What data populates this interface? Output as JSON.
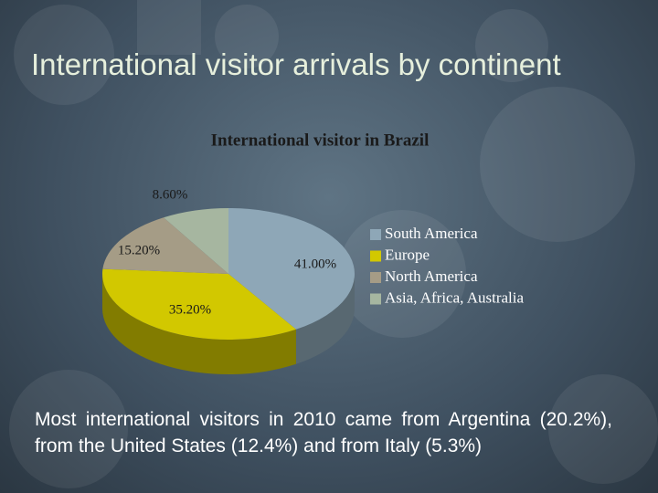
{
  "slide": {
    "title": "International visitor arrivals by continent",
    "body": "Most international visitors in 2010 came from Argentina (20.2%), from the United States (12.4%) and from Italy (5.3%)"
  },
  "chart_data": {
    "type": "pie",
    "title": "International visitor in Brazil",
    "categories": [
      "South America",
      "Europe",
      "North America",
      "Asia, Africa, Australia"
    ],
    "values": [
      41.0,
      35.2,
      15.2,
      8.6
    ],
    "value_labels": [
      "41.00%",
      "35.20%",
      "15.20%",
      "8.60%"
    ],
    "colors": [
      "#8ea7b7",
      "#d2c800",
      "#a59c86",
      "#a6b6a0"
    ]
  }
}
